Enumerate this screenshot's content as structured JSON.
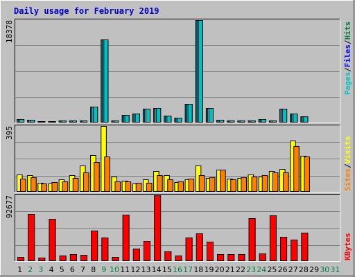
{
  "title": "Daily usage for February 2019",
  "colors": {
    "title": "#0000cc",
    "background": "#c0c0c0",
    "plot": "#c0c0c0",
    "hits": "#008040",
    "files": "#0000ff",
    "pages": "#00c0c0",
    "bars_hits": "#008080",
    "bars_files": "#00ccff",
    "bars_pages": "#00c0c0",
    "visits": "#ffff00",
    "sites": "#ff8000",
    "kbytes": "#ff0000",
    "weekend_label": "#008040",
    "weekday_label": "#000000"
  },
  "chart_data": [
    {
      "type": "bar",
      "panel": "hits-files-pages",
      "ymax_label": "18378",
      "ymax": 18378,
      "legend": {
        "pages": "Pages",
        "files": "Files",
        "hits": "Hits",
        "sep": "/"
      },
      "categories": [
        "1",
        "2",
        "3",
        "4",
        "5",
        "6",
        "7",
        "8",
        "9",
        "10",
        "11",
        "12",
        "13",
        "14",
        "15",
        "16",
        "17",
        "18",
        "19",
        "20",
        "21",
        "22",
        "23",
        "24",
        "25",
        "26",
        "27",
        "28",
        "29",
        "30",
        "31"
      ],
      "series": [
        {
          "name": "Hits",
          "values": [
            560,
            350,
            150,
            150,
            200,
            200,
            300,
            2800,
            14900,
            280,
            1200,
            1500,
            2400,
            2500,
            1100,
            700,
            3200,
            18378,
            2500,
            350,
            300,
            300,
            200,
            450,
            300,
            2400,
            1500,
            1000,
            0,
            0,
            0
          ]
        },
        {
          "name": "Files",
          "values": [
            560,
            350,
            150,
            150,
            200,
            200,
            300,
            2800,
            14900,
            280,
            1200,
            1500,
            2400,
            2500,
            1100,
            700,
            3200,
            18378,
            2500,
            350,
            300,
            300,
            200,
            450,
            300,
            2400,
            1500,
            1000,
            0,
            0,
            0
          ]
        },
        {
          "name": "Pages",
          "values": [
            560,
            350,
            150,
            150,
            200,
            200,
            300,
            2800,
            14900,
            280,
            1200,
            1500,
            2400,
            2500,
            1100,
            700,
            3200,
            18378,
            2500,
            350,
            300,
            300,
            200,
            450,
            300,
            2400,
            1500,
            1000,
            0,
            0,
            0
          ]
        }
      ]
    },
    {
      "type": "bar",
      "panel": "visits-sites",
      "ymax_label": "395",
      "ymax": 395,
      "legend": {
        "sites": "Sites",
        "visits": "Visits",
        "sep": "/"
      },
      "categories": [
        "1",
        "2",
        "3",
        "4",
        "5",
        "6",
        "7",
        "8",
        "9",
        "10",
        "11",
        "12",
        "13",
        "14",
        "15",
        "16",
        "17",
        "18",
        "19",
        "20",
        "21",
        "22",
        "23",
        "24",
        "25",
        "26",
        "27",
        "28",
        "29",
        "30",
        "31"
      ],
      "series": [
        {
          "name": "Visits",
          "values": [
            100,
            95,
            50,
            45,
            70,
            95,
            155,
            220,
            395,
            90,
            65,
            45,
            70,
            120,
            95,
            55,
            70,
            155,
            80,
            130,
            75,
            80,
            100,
            90,
            120,
            135,
            305,
            215,
            0,
            0,
            0
          ]
        },
        {
          "name": "Sites",
          "values": [
            75,
            85,
            45,
            55,
            60,
            80,
            115,
            175,
            210,
            60,
            60,
            50,
            50,
            95,
            70,
            60,
            75,
            95,
            85,
            130,
            70,
            85,
            90,
            95,
            115,
            115,
            275,
            210,
            0,
            0,
            0
          ]
        }
      ]
    },
    {
      "type": "bar",
      "panel": "kbytes",
      "ymax_label": "92677",
      "ymax": 92677,
      "legend": {
        "kbytes": "KBytes"
      },
      "categories": [
        "1",
        "2",
        "3",
        "4",
        "5",
        "6",
        "7",
        "8",
        "9",
        "10",
        "11",
        "12",
        "13",
        "14",
        "15",
        "16",
        "17",
        "18",
        "19",
        "20",
        "21",
        "22",
        "23",
        "24",
        "25",
        "26",
        "27",
        "28",
        "29",
        "30",
        "31"
      ],
      "series": [
        {
          "name": "KBytes",
          "values": [
            4500,
            66000,
            3500,
            59000,
            7000,
            8500,
            8000,
            42000,
            33000,
            5000,
            65000,
            17000,
            28000,
            92677,
            12500,
            6500,
            33000,
            38000,
            27000,
            9000,
            9000,
            9000,
            60000,
            10000,
            64000,
            34000,
            30000,
            39000,
            0,
            0,
            0
          ]
        }
      ]
    }
  ],
  "weekend_days": [
    "2",
    "3",
    "9",
    "10",
    "16",
    "17",
    "23",
    "24",
    "30",
    "31"
  ]
}
